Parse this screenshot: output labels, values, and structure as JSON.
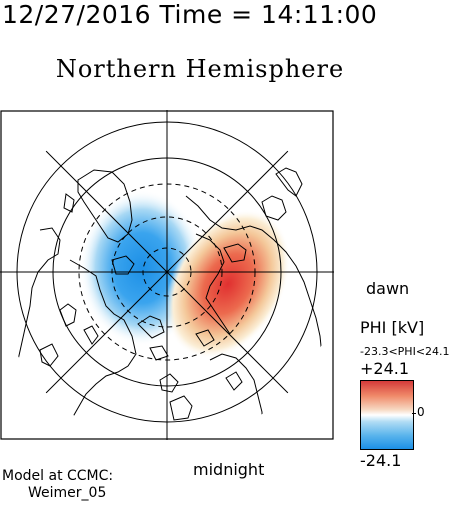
{
  "header": {
    "datetime": "12/27/2016 Time = 14:11:00"
  },
  "title": "Northern Hemisphere",
  "labels": {
    "dawn": "dawn",
    "midnight": "midnight"
  },
  "colorbar": {
    "label": "PHI [kV]",
    "range_text": "-23.3<PHI<24.1",
    "max_label": "+24.1",
    "min_label": "-24.1",
    "zero_label": "0",
    "colors": {
      "positive": "#d43a3a",
      "negative": "#1c8fe6",
      "neutral": "#ffffff"
    }
  },
  "model": {
    "line1": "Model at CCMC:",
    "line2": "Weimer_05"
  }
}
